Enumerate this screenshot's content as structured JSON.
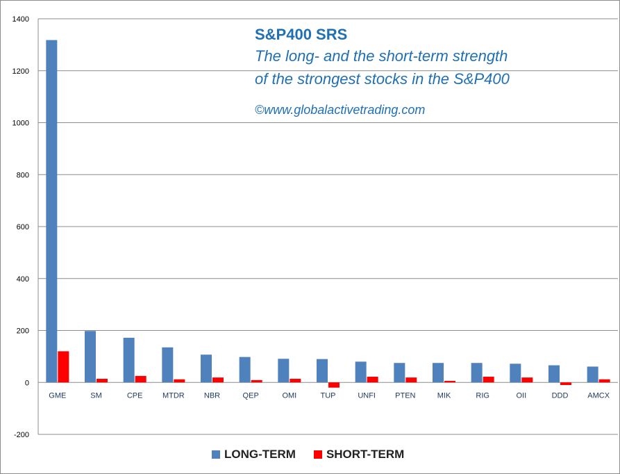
{
  "title": {
    "main": "S&P400 SRS",
    "line1": "The long- and the short-term strength",
    "line2": "of the  strongest stocks in the S&P400",
    "copyright": "©www.globalactivetrading.com"
  },
  "legend": {
    "long_label": "LONG-TERM",
    "short_label": "SHORT-TERM"
  },
  "colors": {
    "long": "#4f81bd",
    "short": "#ff0000",
    "grid": "#8c8c8c",
    "title": "#1f6fb4"
  },
  "chart_data": {
    "type": "bar",
    "categories": [
      "GME",
      "SM",
      "CPE",
      "MTDR",
      "NBR",
      "QEP",
      "OMI",
      "TUP",
      "UNFI",
      "PTEN",
      "MIK",
      "RIG",
      "OII",
      "DDD",
      "AMCX"
    ],
    "series": [
      {
        "name": "LONG-TERM",
        "values": [
          1318,
          198,
          172,
          135,
          107,
          98,
          91,
          90,
          80,
          75,
          75,
          75,
          72,
          66,
          61
        ]
      },
      {
        "name": "SHORT-TERM",
        "values": [
          120,
          14,
          25,
          12,
          19,
          9,
          14,
          -20,
          22,
          19,
          6,
          22,
          19,
          -10,
          12
        ]
      }
    ],
    "ylim": [
      -200,
      1400
    ],
    "yticks": [
      -200,
      0,
      200,
      400,
      600,
      800,
      1000,
      1200,
      1400
    ],
    "grid": true,
    "legend_position": "bottom"
  }
}
